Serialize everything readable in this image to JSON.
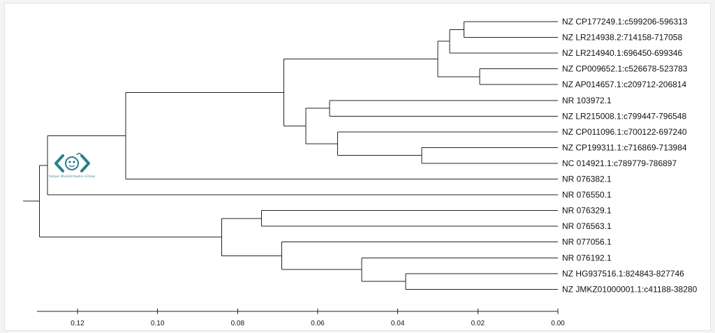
{
  "tree": {
    "leaves": [
      {
        "id": "L1",
        "label": "NZ CP177249.1:c599206-596313"
      },
      {
        "id": "L2",
        "label": "NZ LR214938.2:714158-717058"
      },
      {
        "id": "L3",
        "label": "NZ LR214940.1:696450-699346"
      },
      {
        "id": "L4",
        "label": "NZ CP009652.1:c526678-523783"
      },
      {
        "id": "L5",
        "label": "NZ AP014657.1:c209712-206814"
      },
      {
        "id": "L6",
        "label": "NR 103972.1"
      },
      {
        "id": "L7",
        "label": "NZ LR215008.1:c799447-796548"
      },
      {
        "id": "L8",
        "label": "NZ CP011096.1:c700122-697240"
      },
      {
        "id": "L9",
        "label": "NZ CP199311.1:c716869-713984"
      },
      {
        "id": "L10",
        "label": "NC 014921.1:c789779-786897"
      },
      {
        "id": "L11",
        "label": "NR 076382.1"
      },
      {
        "id": "L12",
        "label": "NR 076550.1"
      },
      {
        "id": "L13",
        "label": "NR 076329.1"
      },
      {
        "id": "L14",
        "label": "NR 076563.1"
      },
      {
        "id": "L15",
        "label": "NR 077056.1"
      },
      {
        "id": "L16",
        "label": "NR 076192.1"
      },
      {
        "id": "L17",
        "label": "NZ HG937516.1:824843-827746"
      },
      {
        "id": "L18",
        "label": "NZ JMKZ01000001.1:c41188-38280"
      }
    ],
    "internal_heights": {
      "n1_2": 0.0235,
      "n12_3": 0.027,
      "n4_5": 0.0195,
      "nA": 0.03,
      "n6_7": 0.057,
      "n9_10": 0.034,
      "n8_n": 0.055,
      "nB": 0.063,
      "nC": 0.0685,
      "nD": 0.108,
      "nE": 0.1275,
      "n13_14": 0.074,
      "n17_18": 0.038,
      "n16_n": 0.049,
      "n15_n": 0.069,
      "nF": 0.084,
      "root": 0.1295
    },
    "topology": [
      "root",
      [
        "nE",
        [
          "nD",
          [
            "nC",
            [
              "nA",
              [
                "n12_3",
                [
                  "n1_2",
                  "L1",
                  "L2"
                ],
                "L3"
              ],
              [
                "n4_5",
                "L4",
                "L5"
              ]
            ],
            [
              "nB",
              [
                "n6_7",
                "L6",
                "L7"
              ],
              [
                "n8_n",
                "L8",
                [
                  "n9_10",
                  "L9",
                  "L10"
                ]
              ]
            ]
          ],
          "L11"
        ],
        "L12"
      ],
      [
        "nF",
        [
          "n13_14",
          "L13",
          "L14"
        ],
        [
          "n15_n",
          "L15",
          [
            "n16_n",
            "L16",
            [
              "n17_18",
              "L17",
              "L18"
            ]
          ]
        ]
      ]
    ]
  },
  "axis": {
    "ticks": [
      "0.12",
      "0.10",
      "0.08",
      "0.06",
      "0.04",
      "0.02",
      "0.00"
    ],
    "tick_values": [
      0.12,
      0.1,
      0.08,
      0.06,
      0.04,
      0.02,
      0.0
    ]
  },
  "logo": {
    "caption": "Vanyar Bioinformatics Group",
    "color": "#2a7f8f"
  }
}
